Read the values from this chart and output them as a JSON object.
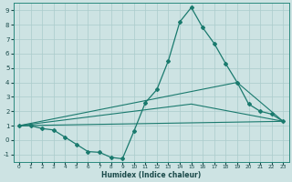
{
  "xlabel": "Humidex (Indice chaleur)",
  "xlim": [
    -0.5,
    23.5
  ],
  "ylim": [
    -1.5,
    9.5
  ],
  "xticks": [
    0,
    1,
    2,
    3,
    4,
    5,
    6,
    7,
    8,
    9,
    10,
    11,
    12,
    13,
    14,
    15,
    16,
    17,
    18,
    19,
    20,
    21,
    22,
    23
  ],
  "yticks": [
    -1,
    0,
    1,
    2,
    3,
    4,
    5,
    6,
    7,
    8,
    9
  ],
  "background_color": "#cde3e3",
  "grid_color": "#aacccc",
  "line_color": "#1a7a6e",
  "main_series": {
    "x": [
      0,
      1,
      2,
      3,
      4,
      5,
      6,
      7,
      8,
      9,
      10,
      11,
      12,
      13,
      14,
      15,
      16,
      17,
      18,
      19,
      20,
      21,
      22,
      23
    ],
    "y": [
      1.0,
      1.0,
      0.8,
      0.7,
      0.2,
      -0.3,
      -0.8,
      -0.85,
      -1.2,
      -1.3,
      0.6,
      2.6,
      3.5,
      5.5,
      8.2,
      9.2,
      7.8,
      6.7,
      5.3,
      4.0,
      2.5,
      2.0,
      1.8,
      1.3
    ],
    "markersize": 2.0,
    "linewidth": 0.9
  },
  "aux_lines": [
    {
      "x": [
        0,
        23
      ],
      "y": [
        1.0,
        1.3
      ]
    },
    {
      "x": [
        0,
        19,
        23
      ],
      "y": [
        1.0,
        4.0,
        1.3
      ]
    },
    {
      "x": [
        0,
        15,
        23
      ],
      "y": [
        1.0,
        2.5,
        1.3
      ]
    }
  ]
}
